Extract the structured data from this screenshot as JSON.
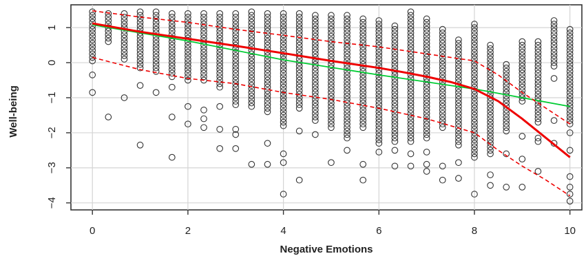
{
  "chart_data": {
    "type": "scatter",
    "title": "",
    "xlabel": "Negative Emotions",
    "ylabel": "Well-being",
    "xlim": [
      -0.45,
      10.25
    ],
    "ylim": [
      -4.2,
      1.65
    ],
    "xticks": [
      0,
      2,
      4,
      6,
      8,
      10
    ],
    "yticks": [
      1,
      0,
      -1,
      -2,
      -3,
      -4
    ],
    "xtick_labels": [
      "0",
      "2",
      "4",
      "6",
      "8",
      "10"
    ],
    "ytick_labels": [
      "1",
      "0",
      "−1",
      "−2",
      "−3",
      "−4"
    ],
    "grid": true,
    "background": "#ffffff",
    "point_marker": "open circle",
    "point_color": "#333333",
    "x_levels": [
      0,
      0.333,
      0.667,
      1,
      1.333,
      1.667,
      2,
      2.333,
      2.667,
      3,
      3.333,
      3.667,
      4,
      4.333,
      4.667,
      5,
      5.333,
      5.667,
      6,
      6.333,
      6.667,
      7,
      7.333,
      7.667,
      8,
      8.333,
      8.667,
      9,
      9.333,
      9.667,
      10
    ],
    "point_columns": [
      {
        "x": 0,
        "y_high": 1.45,
        "y_low": 0.0,
        "outliers": [
          -0.35,
          -0.85
        ]
      },
      {
        "x": 0.333,
        "y_high": 1.4,
        "y_low": 0.55,
        "outliers": [
          -1.55
        ]
      },
      {
        "x": 0.667,
        "y_high": 1.4,
        "y_low": 0.1,
        "outliers": [
          -1.0
        ]
      },
      {
        "x": 1,
        "y_high": 1.45,
        "y_low": -0.2,
        "outliers": [
          -0.65,
          -2.35
        ]
      },
      {
        "x": 1.333,
        "y_high": 1.45,
        "y_low": -0.3,
        "outliers": [
          -0.85
        ]
      },
      {
        "x": 1.667,
        "y_high": 1.4,
        "y_low": -0.4,
        "outliers": [
          -0.7,
          -1.55,
          -2.7
        ]
      },
      {
        "x": 2,
        "y_high": 1.4,
        "y_low": -0.5,
        "outliers": [
          -1.25,
          -1.75
        ]
      },
      {
        "x": 2.333,
        "y_high": 1.4,
        "y_low": -0.5,
        "outliers": [
          -1.35,
          -1.6,
          -1.85
        ]
      },
      {
        "x": 2.667,
        "y_high": 1.4,
        "y_low": -0.75,
        "outliers": [
          -1.25,
          -1.9,
          -2.45
        ]
      },
      {
        "x": 3,
        "y_high": 1.4,
        "y_low": -1.2,
        "outliers": [
          -1.9,
          -2.45,
          -2.05
        ]
      },
      {
        "x": 3.333,
        "y_high": 1.45,
        "y_low": -1.3,
        "outliers": [
          -2.9
        ]
      },
      {
        "x": 3.667,
        "y_high": 1.4,
        "y_low": -1.45,
        "outliers": [
          -2.3,
          -2.9
        ]
      },
      {
        "x": 4,
        "y_high": 1.4,
        "y_low": -1.85,
        "outliers": [
          -2.6,
          -2.85,
          -3.75
        ]
      },
      {
        "x": 4.333,
        "y_high": 1.4,
        "y_low": -1.35,
        "outliers": [
          -1.95,
          -3.35
        ]
      },
      {
        "x": 4.667,
        "y_high": 1.35,
        "y_low": -1.7,
        "outliers": [
          -2.05
        ]
      },
      {
        "x": 5,
        "y_high": 1.35,
        "y_low": -1.85,
        "outliers": [
          -2.85
        ]
      },
      {
        "x": 5.333,
        "y_high": 1.35,
        "y_low": -2.2,
        "outliers": [
          -2.5
        ]
      },
      {
        "x": 5.667,
        "y_high": 1.25,
        "y_low": -1.9,
        "outliers": [
          -2.9,
          -3.35
        ]
      },
      {
        "x": 6,
        "y_high": 1.2,
        "y_low": -2.3,
        "outliers": [
          -2.55
        ]
      },
      {
        "x": 6.333,
        "y_high": 1.05,
        "y_low": -2.3,
        "outliers": [
          -2.5,
          -2.95
        ]
      },
      {
        "x": 6.667,
        "y_high": 1.45,
        "y_low": -2.3,
        "outliers": [
          -2.6,
          -2.95
        ]
      },
      {
        "x": 7,
        "y_high": 1.25,
        "y_low": -2.2,
        "outliers": [
          -2.55,
          -2.9,
          -3.1
        ]
      },
      {
        "x": 7.333,
        "y_high": 0.95,
        "y_low": -1.85,
        "outliers": [
          -2.95,
          -3.35
        ]
      },
      {
        "x": 7.667,
        "y_high": 0.65,
        "y_low": -2.35,
        "outliers": [
          -2.85,
          -3.3
        ]
      },
      {
        "x": 8,
        "y_high": 1.1,
        "y_low": -2.75,
        "outliers": [
          -3.75
        ]
      },
      {
        "x": 8.333,
        "y_high": 0.5,
        "y_low": -2.6,
        "outliers": [
          -3.2,
          -3.5
        ]
      },
      {
        "x": 8.667,
        "y_high": -0.05,
        "y_low": -1.95,
        "outliers": [
          -0.85,
          -2.6,
          -3.55
        ]
      },
      {
        "x": 9,
        "y_high": 0.6,
        "y_low": -1.1,
        "outliers": [
          -0.2,
          -2.1,
          -2.75,
          -3.55
        ]
      },
      {
        "x": 9.333,
        "y_high": 0.6,
        "y_low": -1.75,
        "outliers": [
          -2.15,
          -2.25,
          -3.1
        ]
      },
      {
        "x": 9.667,
        "y_high": 1.2,
        "y_low": -0.15,
        "outliers": [
          -0.45,
          -1.65,
          -2.3
        ]
      },
      {
        "x": 10,
        "y_high": 0.95,
        "y_low": -1.75,
        "outliers": [
          -2.0,
          -2.5,
          -3.25,
          -3.55,
          -3.75,
          -3.95
        ]
      }
    ],
    "series": [
      {
        "color": "#00cc33",
        "style": "solid",
        "x": [
          0,
          2,
          4,
          6,
          8,
          9,
          10
        ],
        "y": [
          1.08,
          0.62,
          0.08,
          -0.35,
          -0.75,
          -1.0,
          -1.25
        ]
      },
      {
        "color": "#ee0000",
        "style": "solid",
        "x": [
          0,
          1,
          2,
          3,
          4,
          5,
          6,
          6.5,
          7,
          7.5,
          8,
          8.5,
          9,
          9.5,
          10
        ],
        "y": [
          1.12,
          0.88,
          0.68,
          0.48,
          0.27,
          0.05,
          -0.15,
          -0.27,
          -0.4,
          -0.55,
          -0.75,
          -1.1,
          -1.6,
          -2.15,
          -2.7
        ]
      },
      {
        "color": "#ee0000",
        "style": "dashed",
        "x": [
          0,
          1,
          2,
          3,
          4,
          5,
          6,
          6.5,
          7,
          7.5,
          8,
          8.5,
          9,
          9.5,
          10
        ],
        "y": [
          1.48,
          1.3,
          1.15,
          0.95,
          0.78,
          0.6,
          0.45,
          0.35,
          0.25,
          0.15,
          0.05,
          -0.35,
          -0.85,
          -1.3,
          -1.75
        ]
      },
      {
        "color": "#ee0000",
        "style": "dashed",
        "x": [
          0,
          1,
          2,
          3,
          4,
          5,
          6,
          6.5,
          7,
          7.5,
          8,
          8.5,
          9,
          9.5,
          10
        ],
        "y": [
          0.15,
          -0.2,
          -0.45,
          -0.6,
          -0.85,
          -1.05,
          -1.3,
          -1.45,
          -1.6,
          -1.8,
          -2.0,
          -2.5,
          -2.95,
          -3.35,
          -3.8
        ]
      }
    ]
  }
}
